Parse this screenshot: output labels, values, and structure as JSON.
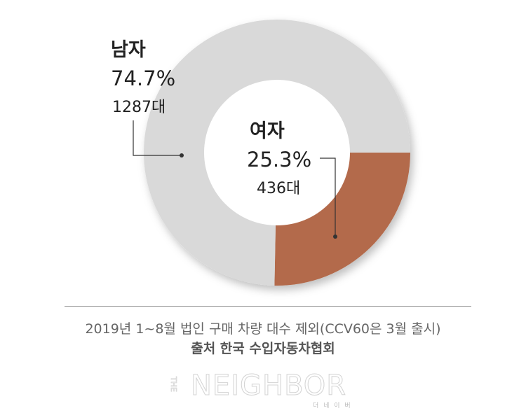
{
  "chart_data": {
    "type": "pie",
    "style": "donut",
    "slices": [
      {
        "label": "남자",
        "percent_label": "74.7%",
        "count_label": "1287대",
        "value": 1287,
        "color": "#d9d9d9"
      },
      {
        "label": "여자",
        "percent_label": "25.3%",
        "count_label": "436대",
        "value": 436,
        "color": "#b36b4b"
      }
    ]
  },
  "footer": {
    "note": "2019년 1~8월 법인 구매 차량 대수 제외(CCV60은 3월 출시)",
    "source": "출처 한국 수입자동차협회"
  },
  "logo": {
    "the": "THE",
    "name": "NEIGHBOR",
    "sub": "더 네 이 버"
  }
}
